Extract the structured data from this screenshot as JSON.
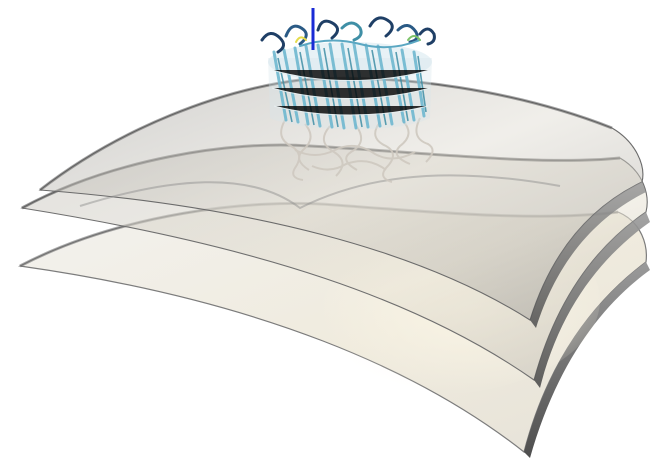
{
  "scene": {
    "subject": "protein-barrel-in-curved-membrane",
    "layer_count": 3,
    "colors": {
      "background": "#ffffff",
      "membrane_light": "#f4f1ea",
      "membrane_mid": "#d6d3cd",
      "membrane_dark": "#8b8b8b",
      "membrane_edge": "#5f5f5f",
      "protein_cyan": "#6fb8d0",
      "protein_teal": "#3f8fa6",
      "protein_navy": "#1f3f66",
      "protein_coil": "#cfc9c0",
      "axis_blue": "#1a2bd6"
    }
  }
}
